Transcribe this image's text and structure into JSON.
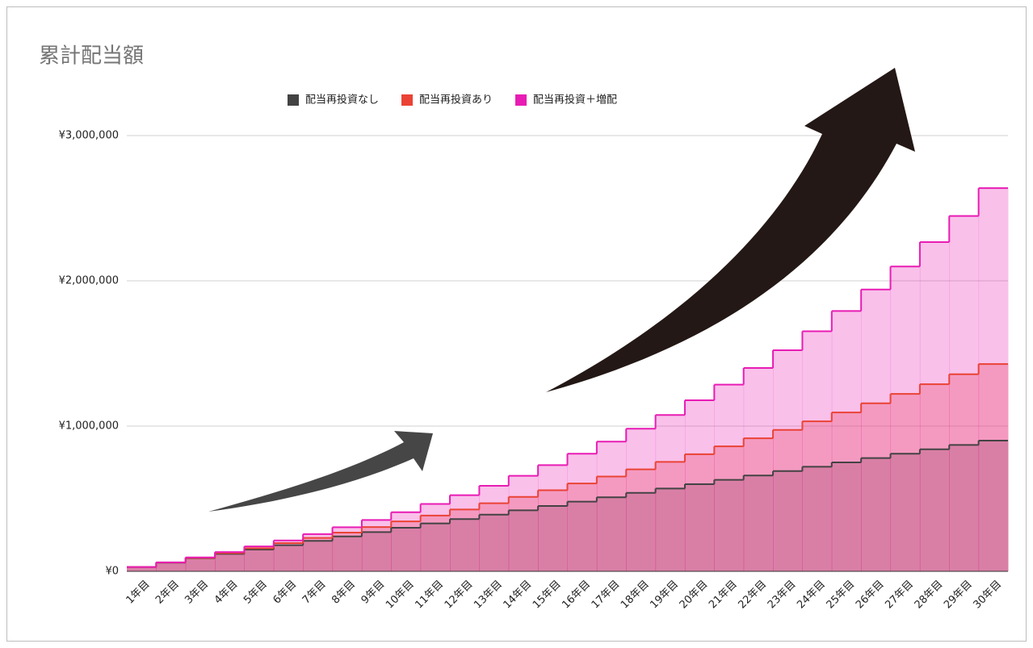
{
  "chart_data": {
    "type": "step-area",
    "title": "累計配当額",
    "categories": [
      "1年目",
      "2年目",
      "3年目",
      "4年目",
      "5年目",
      "6年目",
      "7年目",
      "8年目",
      "9年目",
      "10年目",
      "11年目",
      "12年目",
      "13年目",
      "14年目",
      "15年目",
      "16年目",
      "17年目",
      "18年目",
      "19年目",
      "20年目",
      "21年目",
      "22年目",
      "23年目",
      "24年目",
      "25年目",
      "26年目",
      "27年目",
      "28年目",
      "29年目",
      "30年目"
    ],
    "series": [
      {
        "name": "配当再投資なし",
        "color": "#434343",
        "values": [
          30000,
          60000,
          90000,
          120000,
          150000,
          180000,
          210000,
          240000,
          270000,
          300000,
          330000,
          360000,
          390000,
          420000,
          450000,
          480000,
          510000,
          540000,
          570000,
          600000,
          630000,
          660000,
          690000,
          720000,
          750000,
          780000,
          810000,
          840000,
          870000,
          900000
        ]
      },
      {
        "name": "配当再投資あり",
        "color": "#ea4335",
        "values": [
          30000,
          60900,
          92700,
          125500,
          159300,
          194100,
          229900,
          266800,
          304800,
          343900,
          384200,
          425800,
          468500,
          512600,
          558000,
          604700,
          652800,
          702400,
          753500,
          806100,
          860300,
          916100,
          973600,
          1032800,
          1093800,
          1156600,
          1221300,
          1287900,
          1356600,
          1427300
        ]
      },
      {
        "name": "配当再投資＋増配",
        "color": "#e81cb4",
        "values": [
          30000,
          62000,
          96100,
          132400,
          171200,
          212500,
          256500,
          303400,
          353500,
          406800,
          463600,
          524200,
          588800,
          657700,
          731100,
          809400,
          892800,
          981700,
          1076500,
          1177500,
          1285300,
          1400100,
          1522500,
          1652900,
          1792100,
          1940400,
          2098400,
          2266900,
          2446500,
          2638000
        ]
      }
    ],
    "ylim": [
      0,
      3000000
    ],
    "yticks": [
      {
        "value": 0,
        "label": "¥0"
      },
      {
        "value": 1000000,
        "label": "¥1,000,000"
      },
      {
        "value": 2000000,
        "label": "¥2,000,000"
      },
      {
        "value": 3000000,
        "label": "¥3,000,000"
      }
    ],
    "grid": true,
    "legend": "top"
  }
}
